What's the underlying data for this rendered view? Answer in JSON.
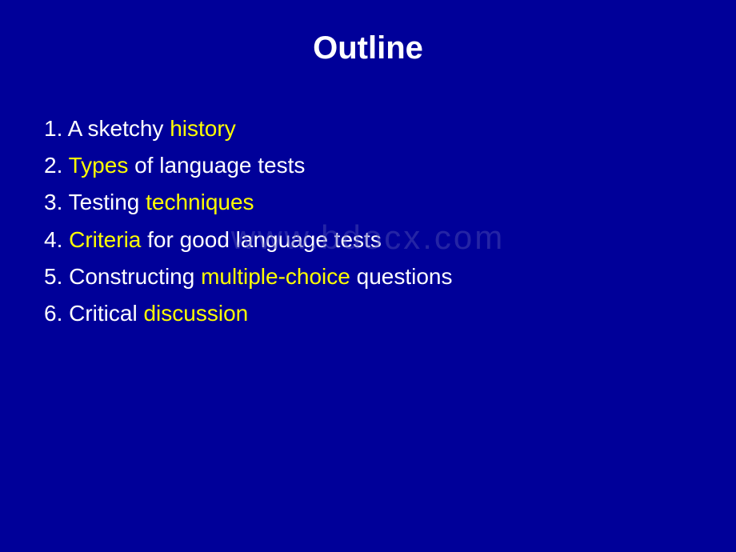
{
  "title": "Outline",
  "watermark": "www.bdocx.com",
  "colors": {
    "background": "#000099",
    "text": "#ffffff",
    "highlight": "#ffff00"
  },
  "items": [
    {
      "number": "1. ",
      "parts": [
        {
          "text": "A sketchy ",
          "highlight": false
        },
        {
          "text": "history",
          "highlight": true
        }
      ]
    },
    {
      "number": "2. ",
      "parts": [
        {
          "text": "Types",
          "highlight": true
        },
        {
          "text": " of language tests",
          "highlight": false
        }
      ]
    },
    {
      "number": "3. ",
      "parts": [
        {
          "text": "Testing ",
          "highlight": false
        },
        {
          "text": "techniques",
          "highlight": true
        }
      ]
    },
    {
      "number": "4. ",
      "parts": [
        {
          "text": "Criteria",
          "highlight": true
        },
        {
          "text": " for good language tests",
          "highlight": false
        }
      ]
    },
    {
      "number": "5. ",
      "parts": [
        {
          "text": "Constructing ",
          "highlight": false
        },
        {
          "text": "multiple-choice",
          "highlight": true
        },
        {
          "text": " questions",
          "highlight": false
        }
      ]
    },
    {
      "number": "6. ",
      "parts": [
        {
          "text": "Critical ",
          "highlight": false
        },
        {
          "text": "discussion",
          "highlight": true
        }
      ]
    }
  ]
}
